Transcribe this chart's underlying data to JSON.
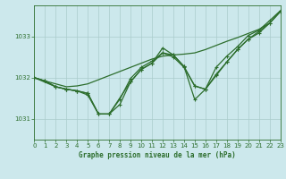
{
  "title": "Graphe pression niveau de la mer (hPa)",
  "bg_color": "#cce8ec",
  "grid_color": "#aacccc",
  "line_color": "#2d6e2d",
  "x_min": 0,
  "x_max": 23,
  "y_min": 1030.5,
  "y_max": 1033.75,
  "yticks": [
    1031,
    1032,
    1033
  ],
  "xticks": [
    0,
    1,
    2,
    3,
    4,
    5,
    6,
    7,
    8,
    9,
    10,
    11,
    12,
    13,
    14,
    15,
    16,
    17,
    18,
    19,
    20,
    21,
    22,
    23
  ],
  "series": [
    {
      "x": [
        0,
        1,
        2,
        3,
        4,
        5,
        6,
        7,
        8,
        9,
        10,
        11,
        12,
        13,
        14,
        15,
        16,
        17,
        18,
        19,
        20,
        21,
        22,
        23
      ],
      "y": [
        1032.0,
        1031.92,
        1031.85,
        1031.78,
        1031.8,
        1031.85,
        1031.95,
        1032.05,
        1032.15,
        1032.25,
        1032.35,
        1032.45,
        1032.52,
        1032.55,
        1032.57,
        1032.6,
        1032.68,
        1032.78,
        1032.88,
        1032.97,
        1033.07,
        1033.17,
        1033.32,
        1033.6
      ],
      "marker": false,
      "linewidth": 0.9
    },
    {
      "x": [
        0,
        1,
        2,
        3,
        4,
        5,
        6,
        7,
        8,
        9,
        10,
        11,
        12,
        13,
        14,
        15,
        16,
        17,
        18,
        19,
        20,
        21,
        22,
        23
      ],
      "y": [
        1032.0,
        1031.92,
        1031.78,
        1031.72,
        1031.68,
        1031.62,
        1031.12,
        1031.12,
        1031.35,
        1031.9,
        1032.2,
        1032.35,
        1032.6,
        1032.55,
        1032.27,
        1031.8,
        1031.72,
        1032.05,
        1032.38,
        1032.68,
        1032.93,
        1033.08,
        1033.32,
        1033.6
      ],
      "marker": true,
      "linewidth": 0.9
    },
    {
      "x": [
        0,
        2,
        3,
        4,
        5,
        6,
        7,
        9,
        10,
        11,
        12,
        13,
        14,
        15,
        16,
        17,
        18,
        19,
        20,
        21,
        22,
        23
      ],
      "y": [
        1032.0,
        1031.78,
        1031.72,
        1031.68,
        1031.62,
        1031.12,
        1031.12,
        1031.9,
        1032.2,
        1032.35,
        1032.72,
        1032.55,
        1032.27,
        1031.47,
        1031.72,
        1032.25,
        1032.52,
        1032.75,
        1033.02,
        1033.15,
        1033.38,
        1033.62
      ],
      "marker": true,
      "linewidth": 0.9
    },
    {
      "x": [
        0,
        1,
        2,
        3,
        4,
        5,
        6,
        7,
        8,
        9,
        10,
        11,
        12,
        13,
        14,
        15,
        16,
        17,
        18,
        19,
        20,
        21,
        22,
        23
      ],
      "y": [
        1032.0,
        1031.92,
        1031.78,
        1031.72,
        1031.68,
        1031.58,
        1031.12,
        1031.12,
        1031.48,
        1031.98,
        1032.25,
        1032.4,
        1032.6,
        1032.5,
        1032.25,
        1031.8,
        1031.72,
        1032.08,
        1032.38,
        1032.68,
        1032.93,
        1033.12,
        1033.32,
        1033.6
      ],
      "marker": true,
      "linewidth": 0.9
    }
  ]
}
